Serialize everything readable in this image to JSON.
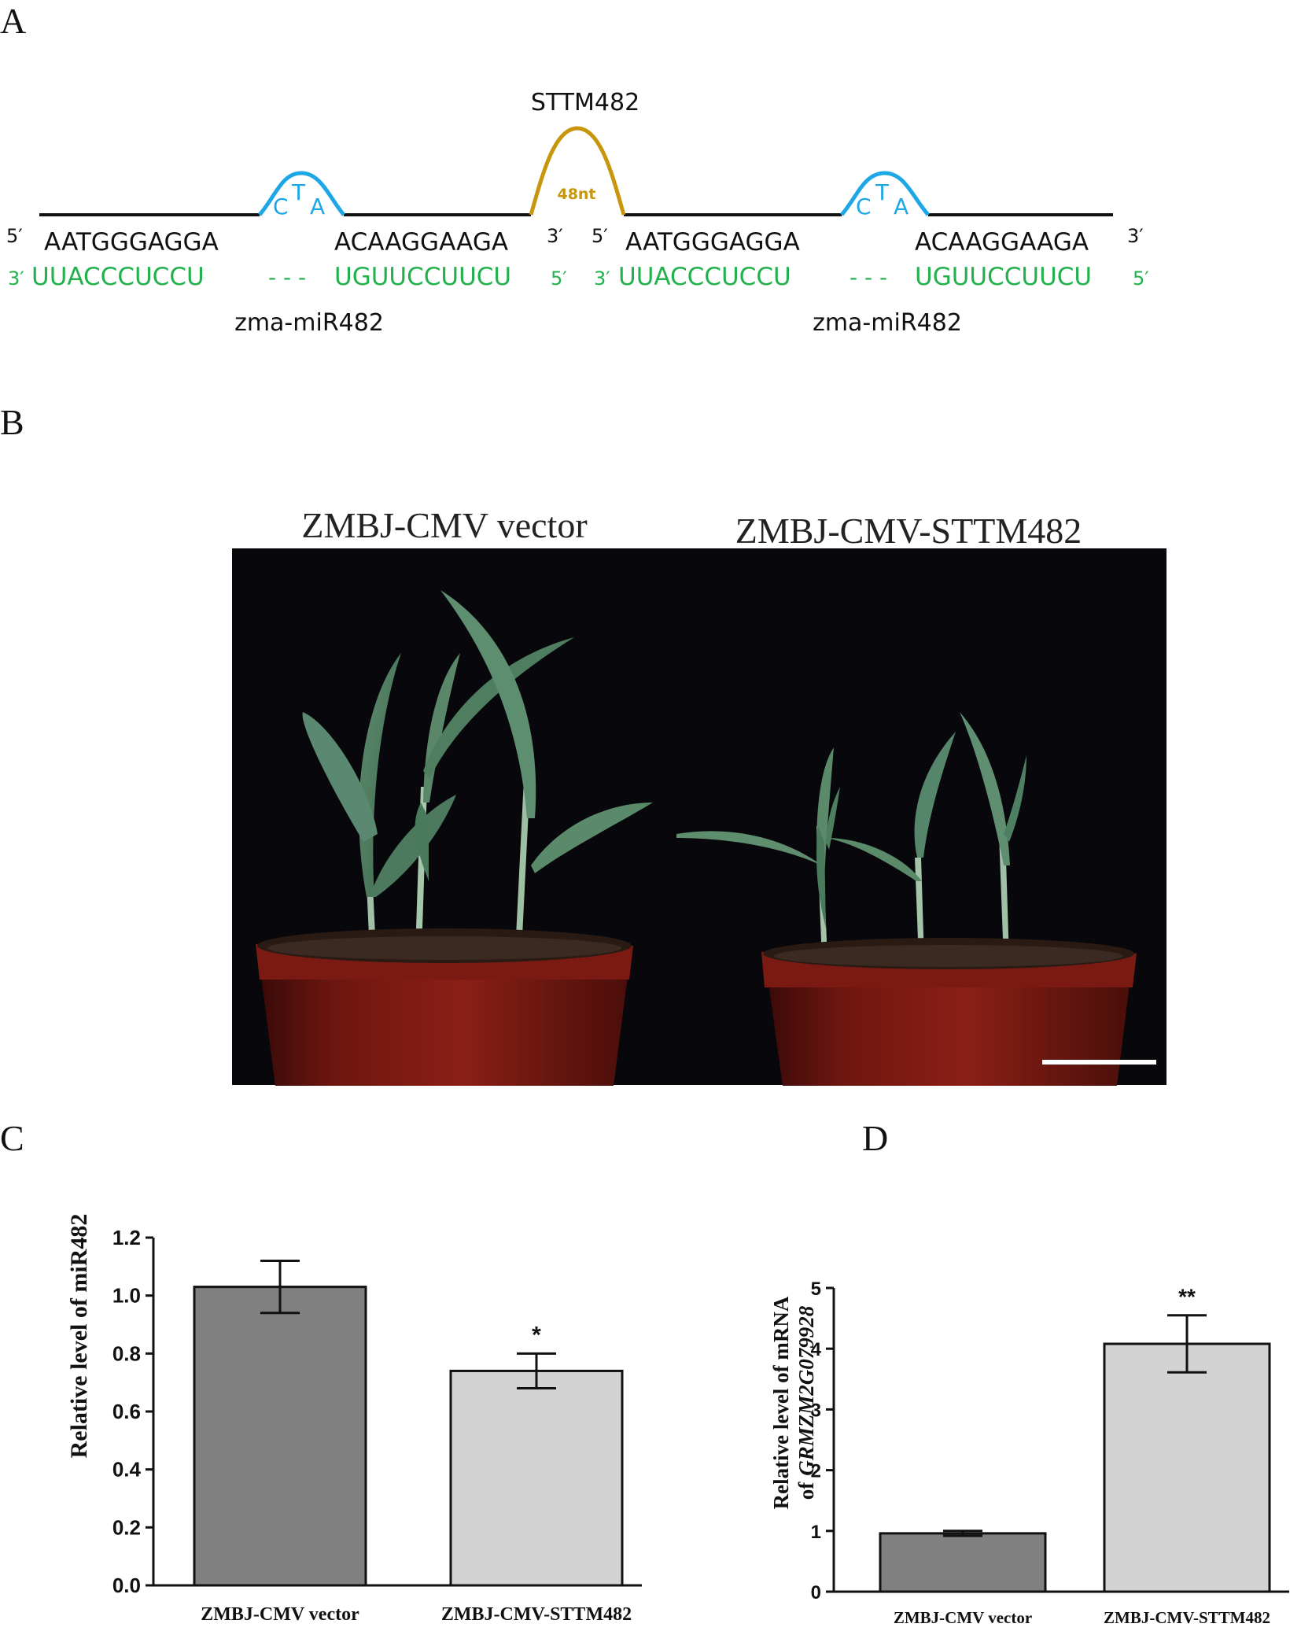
{
  "panels": {
    "a": "A",
    "b": "B",
    "c": "C",
    "d": "D"
  },
  "panel_a": {
    "construct_label": "STTM482",
    "spacer_label": "48nt",
    "bulge_letters": [
      "C",
      "T",
      "A"
    ],
    "units": [
      {
        "top_5": "5′",
        "top_left_seq": "AATGGGAGGA",
        "top_right_seq": "ACAAGGAAGA",
        "top_3": "3′",
        "bottom_3": "3′",
        "bottom_left_seq": "UUACCCUCCU",
        "dashes": "- - -",
        "bottom_right_seq": "UGUUCCUUCU",
        "bottom_5": "5′",
        "mirna_label": "zma-miR482"
      },
      {
        "top_5": "5′",
        "top_left_seq": "AATGGGAGGA",
        "top_right_seq": "ACAAGGAAGA",
        "top_3": "3′",
        "bottom_3": "3′",
        "bottom_left_seq": "UUACCCUCCU",
        "dashes": "- - -",
        "bottom_right_seq": "UGUUCCUUCU",
        "bottom_5": "5′",
        "mirna_label": "zma-miR482"
      }
    ],
    "colors": {
      "target_strand": "#111111",
      "mirna_strand": "#22b14c",
      "bulge": "#1ea7e6",
      "spacer": "#c8960c"
    }
  },
  "panel_b": {
    "left_label": "ZMBJ-CMV vector",
    "right_label": "ZMBJ-CMV-STTM482"
  },
  "chart_data": [
    {
      "type": "bar",
      "panel": "C",
      "categories": [
        "ZMBJ-CMV vector",
        "ZMBJ-CMV-STTM482"
      ],
      "values": [
        1.03,
        0.74
      ],
      "errors": [
        0.09,
        0.06
      ],
      "significance": [
        "",
        "*"
      ],
      "ylabel": "Relative level of miR482",
      "ylim": [
        0,
        1.2
      ],
      "yticks": [
        "0.0",
        "0.2",
        "0.4",
        "0.6",
        "0.8",
        "1.0",
        "1.2"
      ],
      "bar_colors": [
        "#808080",
        "#d3d3d3"
      ]
    },
    {
      "type": "bar",
      "panel": "D",
      "categories": [
        "ZMBJ-CMV vector",
        "ZMBJ-CMV-STTM482"
      ],
      "values": [
        0.96,
        4.08
      ],
      "errors": [
        0.04,
        0.47
      ],
      "significance": [
        "",
        "**"
      ],
      "ylabel_line1": "Relative level of mRNA",
      "ylabel_line2_prefix": "of",
      "ylabel_gene": "GRMZM2G079928",
      "ylim": [
        0,
        5
      ],
      "yticks": [
        "0",
        "1",
        "2",
        "3",
        "4",
        "5"
      ],
      "bar_colors": [
        "#808080",
        "#d3d3d3"
      ]
    }
  ]
}
